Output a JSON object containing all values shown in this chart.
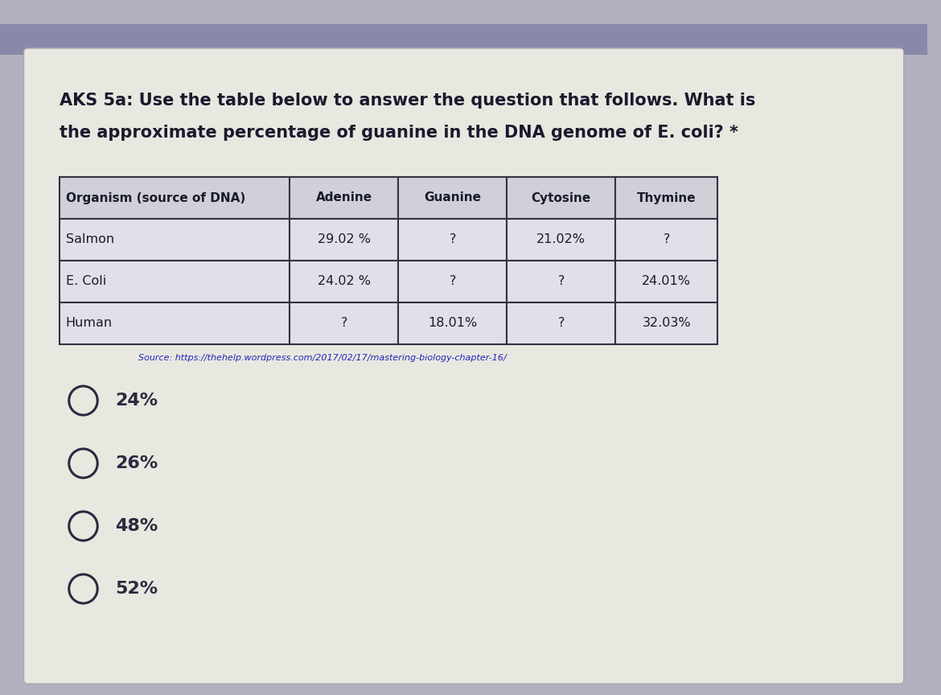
{
  "title_line1": "AKS 5a: Use the table below to answer the question that follows. What is",
  "title_line2": "the approximate percentage of guanine in the DNA genome of E. coli? *",
  "table_headers": [
    "Organism (source of DNA)",
    "Adenine",
    "Guanine",
    "Cytosine",
    "Thymine"
  ],
  "table_rows": [
    [
      "Salmon",
      "29.02 %",
      "?",
      "21.02%",
      "?"
    ],
    [
      "E. Coli",
      "24.02 %",
      "?",
      "?",
      "24.01%"
    ],
    [
      "Human",
      "?",
      "18.01%",
      "?",
      "32.03%"
    ]
  ],
  "source_text": "Source: https://thehelp.wordpress.com/2017/02/17/mastering-biology-chapter-16/",
  "options": [
    "24%",
    "26%",
    "48%",
    "52%"
  ],
  "bg_outer": "#b0b0c0",
  "bg_top_bar": "#8888aa",
  "card_color": "#e8e8e0",
  "table_border": "#333344",
  "header_bg": "#d0d0d8",
  "cell_bg": "#e0e0e8",
  "text_color": "#1a1a2e",
  "source_color": "#2222bb",
  "option_color": "#2a2a40"
}
